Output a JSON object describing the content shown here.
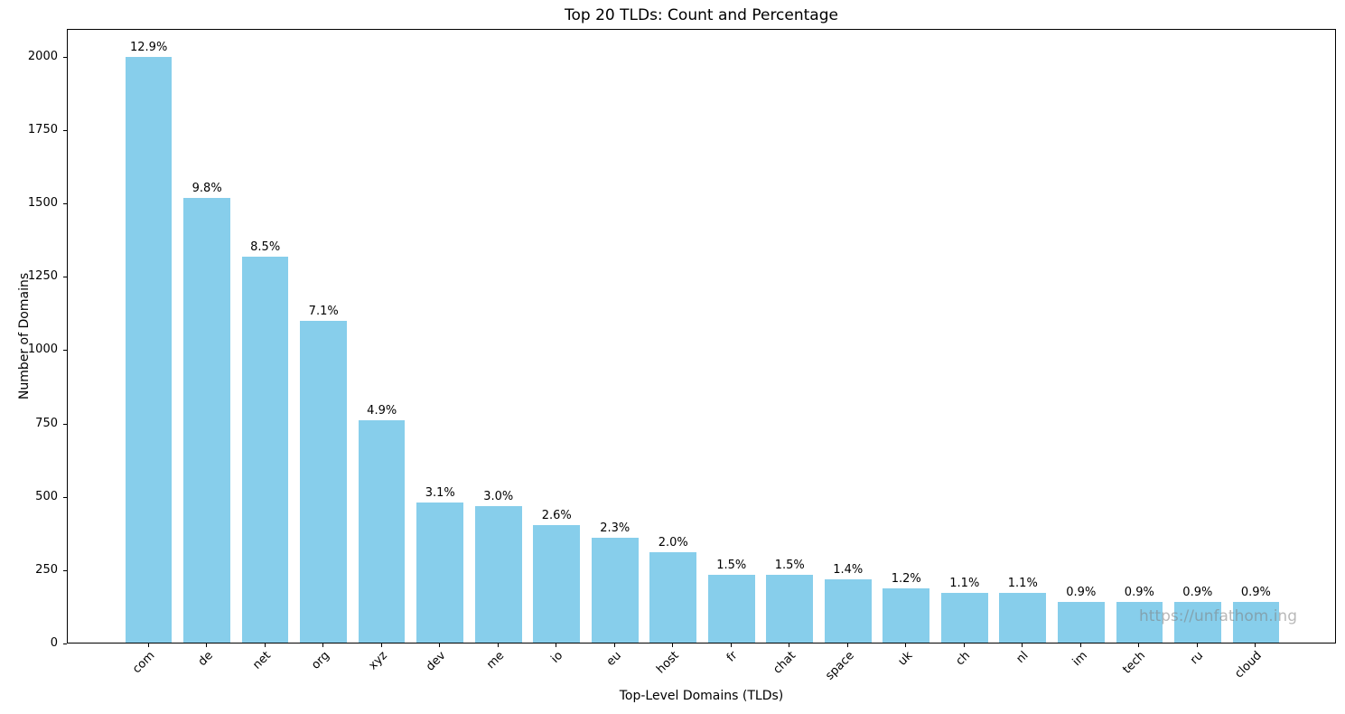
{
  "figure": {
    "watermark": "https://unfathom.ing"
  },
  "chart_data": {
    "type": "bar",
    "title": "Top 20 TLDs: Count and Percentage",
    "xlabel": "Top-Level Domains (TLDs)",
    "ylabel": "Number of Domains",
    "categories": [
      "com",
      "de",
      "net",
      "org",
      "xyz",
      "dev",
      "me",
      "io",
      "eu",
      "host",
      "fr",
      "chat",
      "space",
      "uk",
      "ch",
      "nl",
      "im",
      "tech",
      "ru",
      "cloud"
    ],
    "values": [
      1995,
      1516,
      1315,
      1098,
      758,
      479,
      464,
      402,
      356,
      309,
      232,
      232,
      217,
      186,
      170,
      170,
      139,
      139,
      139,
      139
    ],
    "percent_labels": [
      "12.9%",
      "9.8%",
      "8.5%",
      "7.1%",
      "4.9%",
      "3.1%",
      "3.0%",
      "2.6%",
      "2.3%",
      "2.0%",
      "1.5%",
      "1.5%",
      "1.4%",
      "1.2%",
      "1.1%",
      "1.1%",
      "0.9%",
      "0.9%",
      "0.9%",
      "0.9%"
    ],
    "yticks": [
      0,
      250,
      500,
      750,
      1000,
      1250,
      1500,
      1750,
      2000
    ],
    "ylim": [
      0,
      2095
    ],
    "grid": false,
    "legend": "none",
    "bar_color": "#87CEEB",
    "colors": {
      "bar": "#87CEEB",
      "axis": "#000000",
      "text": "#000000",
      "watermark": "#808080",
      "background": "#ffffff"
    }
  }
}
